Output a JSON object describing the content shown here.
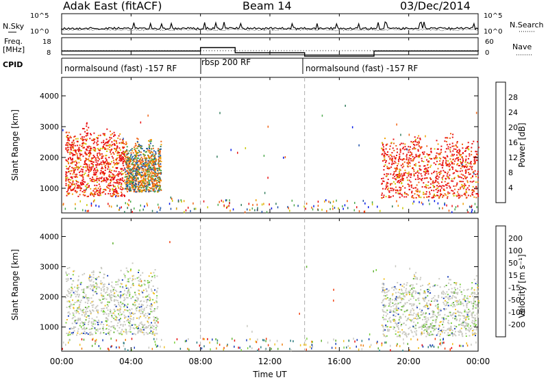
{
  "header": {
    "site": "Adak East (fitACF)",
    "beam": "Beam 14",
    "date": "03/Dec/2014"
  },
  "left_labels": {
    "nsky": "N.Sky",
    "freq_line1": "Freq.",
    "freq_line2": "[MHz]",
    "cpid": "CPID"
  },
  "right_labels": {
    "nsearch": "N.Search",
    "nave": "Nave"
  },
  "cpid_segments": [
    {
      "label": "normalsound (fast) -157 RF",
      "start_h": 0,
      "end_h": 8
    },
    {
      "label": "rbsp 200 RF",
      "start_h": 8,
      "end_h": 14
    },
    {
      "label": "normalsound (fast) -157 RF",
      "start_h": 14,
      "end_h": 24
    }
  ],
  "power_colorbar": {
    "label": "Power [dB]",
    "ticks": [
      "4",
      "8",
      "12",
      "16",
      "20",
      "24",
      "28"
    ],
    "colors": [
      "#0018e6",
      "#1c4fa8",
      "#2f7a5a",
      "#4aa84a",
      "#c9c800",
      "#f0a000",
      "#f06010",
      "#e81010"
    ]
  },
  "velocity_colorbar": {
    "label": "Velocity [m s⁻¹]",
    "ticks": [
      "200",
      "100",
      "50",
      "15",
      "-15",
      "-50",
      "-100",
      "-200"
    ],
    "colors": [
      "#1a3fb8",
      "#2a7a80",
      "#5fb030",
      "#7ad040",
      "#c8c8c0",
      "#f0c020",
      "#f08010",
      "#f04010",
      "#e81010"
    ]
  },
  "chart_data": [
    {
      "type": "line",
      "name_key": "nsky_nsearch",
      "left_ticks": [
        "10^5",
        "10^0"
      ],
      "right_ticks": [
        "10^5",
        "10^0"
      ],
      "xlim": [
        0,
        24
      ]
    },
    {
      "type": "line",
      "name_key": "freq_nave",
      "left_ticks": [
        "18",
        "8"
      ],
      "right_ticks": [
        "60",
        "0"
      ],
      "freq_steps": [
        {
          "start_h": 0,
          "end_h": 8,
          "value": 11
        },
        {
          "start_h": 8,
          "end_h": 10,
          "value": 13
        },
        {
          "start_h": 10,
          "end_h": 14,
          "value": 10
        },
        {
          "start_h": 14,
          "end_h": 18,
          "value": 8
        },
        {
          "start_h": 18,
          "end_h": 24,
          "value": 11
        }
      ],
      "xlim": [
        0,
        24
      ]
    },
    {
      "type": "heatmap",
      "ylabel": "Slant Range [km]",
      "yticks": [
        1000,
        2000,
        3000,
        4000
      ],
      "ylim": [
        200,
        4600
      ],
      "xlim": [
        0,
        24
      ],
      "quantity": "Power",
      "blobs": [
        {
          "t0": 0.2,
          "t1": 3.6,
          "r0": 750,
          "r1": 3300,
          "dominant": "red"
        },
        {
          "t0": 3.6,
          "t1": 5.7,
          "r0": 900,
          "r1": 2800,
          "dominant": "orange-green"
        },
        {
          "t0": 18.4,
          "t1": 24.0,
          "r0": 700,
          "r1": 3000,
          "dominant": "red"
        }
      ]
    },
    {
      "type": "heatmap",
      "ylabel": "Slant Range [km]",
      "yticks": [
        1000,
        2000,
        3000,
        4000
      ],
      "ylim": [
        200,
        4600
      ],
      "xlim": [
        0,
        24
      ],
      "quantity": "Velocity",
      "blobs": [
        {
          "t0": 0.2,
          "t1": 5.5,
          "r0": 750,
          "r1": 3300,
          "dominant": "grey"
        },
        {
          "t0": 18.4,
          "t1": 24.0,
          "r0": 700,
          "r1": 3000,
          "dominant": "grey"
        }
      ]
    }
  ],
  "x_axis": {
    "ticks": [
      "00:00",
      "04:00",
      "08:00",
      "12:00",
      "16:00",
      "20:00",
      "00:00"
    ],
    "label": "Time UT"
  }
}
